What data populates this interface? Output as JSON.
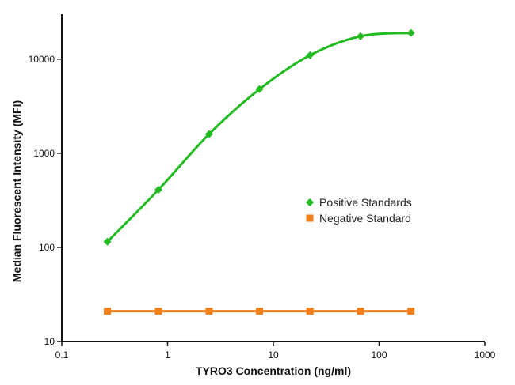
{
  "chart_data": {
    "type": "scatter",
    "title": "",
    "xlabel": "TYRO3 Concentration (ng/ml)",
    "ylabel": "Median Fluorescent Intensity (MFI)",
    "xscale": "log",
    "yscale": "log",
    "xlim": [
      0.1,
      1000
    ],
    "ylim": [
      10,
      30000
    ],
    "xticks": [
      "0.1",
      "1",
      "10",
      "100",
      "1000"
    ],
    "yticks": [
      "10",
      "100",
      "1000",
      "10000"
    ],
    "grid": false,
    "legend_position": "center-right",
    "series": [
      {
        "name": "Positive Standards",
        "color": "#22bb22",
        "marker": "diamond",
        "fit": "sigmoid",
        "x": [
          0.27,
          0.82,
          2.47,
          7.4,
          22.2,
          66.7,
          200
        ],
        "y": [
          115,
          410,
          1600,
          4800,
          11000,
          17500,
          19000
        ]
      },
      {
        "name": "Negative Standard",
        "color": "#f07f1e",
        "marker": "square",
        "fit": "line",
        "x": [
          0.27,
          0.82,
          2.47,
          7.4,
          22.2,
          66.7,
          200
        ],
        "y": [
          21,
          21,
          21,
          21,
          21,
          21,
          21
        ]
      }
    ]
  }
}
